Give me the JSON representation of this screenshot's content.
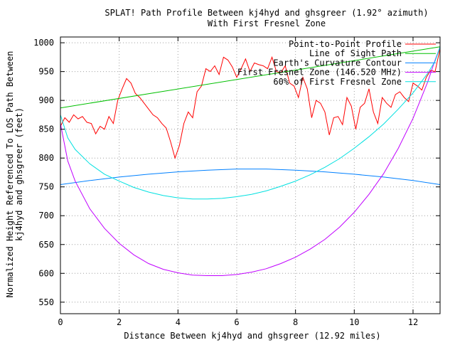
{
  "chart_data": {
    "type": "line",
    "title": "SPLAT! Path Profile Between kj4hyd and ghsgreer (1.92° azimuth)",
    "subtitle": "With First Fresnel Zone",
    "xlabel": "Distance Between kj4hyd and ghsgreer (12.92 miles)",
    "ylabel_line1": "Normalized Height Referenced To LOS Path Between",
    "ylabel_line2": "kj4hyd and ghsgreer (feet)",
    "xlim": [
      0,
      12.92
    ],
    "ylim": [
      530,
      1010
    ],
    "xticks": [
      0,
      2,
      4,
      6,
      8,
      10,
      12
    ],
    "yticks": [
      550,
      600,
      650,
      700,
      750,
      800,
      850,
      900,
      950,
      1000
    ],
    "grid": true,
    "legend_position": "top-right",
    "series": [
      {
        "name": "Point-to-Point Profile",
        "color": "#ff0000",
        "x": [
          0,
          0.15,
          0.3,
          0.45,
          0.6,
          0.75,
          0.9,
          1.05,
          1.2,
          1.35,
          1.5,
          1.65,
          1.8,
          1.95,
          2.1,
          2.25,
          2.4,
          2.55,
          2.7,
          2.85,
          3.0,
          3.15,
          3.3,
          3.45,
          3.6,
          3.75,
          3.9,
          4.05,
          4.2,
          4.35,
          4.5,
          4.65,
          4.8,
          4.95,
          5.1,
          5.25,
          5.4,
          5.55,
          5.7,
          5.85,
          6.0,
          6.15,
          6.3,
          6.45,
          6.6,
          6.75,
          6.9,
          7.05,
          7.2,
          7.35,
          7.5,
          7.65,
          7.8,
          7.95,
          8.1,
          8.25,
          8.4,
          8.55,
          8.7,
          8.85,
          9.0,
          9.15,
          9.3,
          9.45,
          9.6,
          9.75,
          9.9,
          10.05,
          10.2,
          10.35,
          10.5,
          10.65,
          10.8,
          10.95,
          11.1,
          11.25,
          11.4,
          11.55,
          11.7,
          11.85,
          12.0,
          12.15,
          12.3,
          12.45,
          12.6,
          12.75,
          12.92
        ],
        "values": [
          855,
          870,
          862,
          875,
          868,
          872,
          862,
          860,
          842,
          855,
          850,
          872,
          860,
          900,
          920,
          938,
          930,
          912,
          905,
          895,
          885,
          875,
          870,
          860,
          852,
          828,
          800,
          822,
          860,
          880,
          870,
          915,
          925,
          955,
          950,
          960,
          945,
          975,
          970,
          958,
          940,
          955,
          972,
          950,
          965,
          962,
          960,
          955,
          975,
          950,
          948,
          960,
          930,
          925,
          905,
          940,
          920,
          870,
          900,
          895,
          880,
          840,
          870,
          872,
          858,
          905,
          890,
          850,
          888,
          895,
          920,
          880,
          860,
          905,
          895,
          888,
          910,
          915,
          905,
          898,
          930,
          925,
          918,
          940,
          952,
          950,
          990
        ]
      },
      {
        "name": "Line of Sight Path",
        "color": "#00c000",
        "x": [
          0,
          12.92
        ],
        "values": [
          887,
          993
        ]
      },
      {
        "name": "Earth's Curvature Contour",
        "color": "#0080ff",
        "x": [
          0,
          1,
          2,
          3,
          4,
          5,
          6,
          6.46,
          7,
          8,
          9,
          10,
          11,
          12,
          12.92
        ],
        "values": [
          754,
          761,
          767,
          772,
          776,
          779,
          781,
          781,
          781,
          779,
          776,
          772,
          767,
          761,
          754
        ]
      },
      {
        "name": "First Fresnel Zone (146.520 MHz)",
        "color": "#c000ff",
        "x": [
          0,
          0.25,
          0.5,
          1,
          1.5,
          2,
          2.5,
          3,
          3.5,
          4,
          4.5,
          5,
          5.5,
          6,
          6.5,
          7,
          7.5,
          8,
          8.5,
          9,
          9.5,
          10,
          10.5,
          11,
          11.5,
          12,
          12.5,
          12.75,
          12.92
        ],
        "values": [
          860,
          795,
          760,
          712,
          678,
          652,
          632,
          617,
          607,
          601,
          597,
          596,
          596,
          598,
          602,
          608,
          617,
          628,
          642,
          659,
          680,
          706,
          737,
          773,
          817,
          869,
          932,
          970,
          993
        ]
      },
      {
        "name": "60% of First Fresnel Zone",
        "color": "#00e0e0",
        "x": [
          0,
          0.25,
          0.5,
          1,
          1.5,
          2,
          2.5,
          3,
          3.5,
          4,
          4.5,
          5,
          5.5,
          6,
          6.5,
          7,
          7.5,
          8,
          8.5,
          9,
          9.5,
          10,
          10.5,
          11,
          11.5,
          12,
          12.5,
          12.75,
          12.92
        ],
        "values": [
          875,
          835,
          815,
          790,
          772,
          760,
          749,
          741,
          735,
          731,
          729,
          729,
          730,
          733,
          737,
          743,
          751,
          760,
          771,
          784,
          799,
          817,
          837,
          859,
          885,
          913,
          947,
          968,
          993
        ]
      }
    ]
  }
}
